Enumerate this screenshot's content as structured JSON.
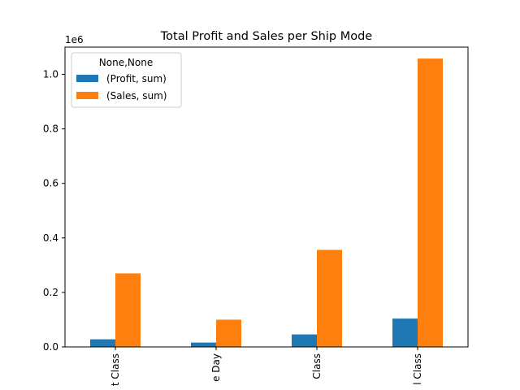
{
  "chart_data": {
    "type": "bar",
    "title": "Total Profit and Sales per Ship Mode",
    "xlabel": "",
    "ylabel": "",
    "y_offset_label": "1e6",
    "ylim": [
      0,
      1.1
    ],
    "yticks": [
      0.0,
      0.2,
      0.4,
      0.6,
      0.8,
      1.0
    ],
    "ytick_labels": [
      "0.0",
      "0.2",
      "0.4",
      "0.6",
      "0.8",
      "1.0"
    ],
    "categories": [
      "First Class",
      "Same Day",
      "Second Class",
      "Standard Class"
    ],
    "category_labels_visible": [
      "t Class",
      "e Day",
      "Class",
      "l Class"
    ],
    "series": [
      {
        "name": "(Profit, sum)",
        "color": "#1f77b4",
        "values": [
          0.028,
          0.016,
          0.046,
          0.104
        ]
      },
      {
        "name": "(Sales, sum)",
        "color": "#ff7f0e",
        "values": [
          0.27,
          0.1,
          0.356,
          1.058
        ]
      }
    ],
    "legend": {
      "title": "None,None",
      "placement": "top-left"
    },
    "grid": false
  }
}
